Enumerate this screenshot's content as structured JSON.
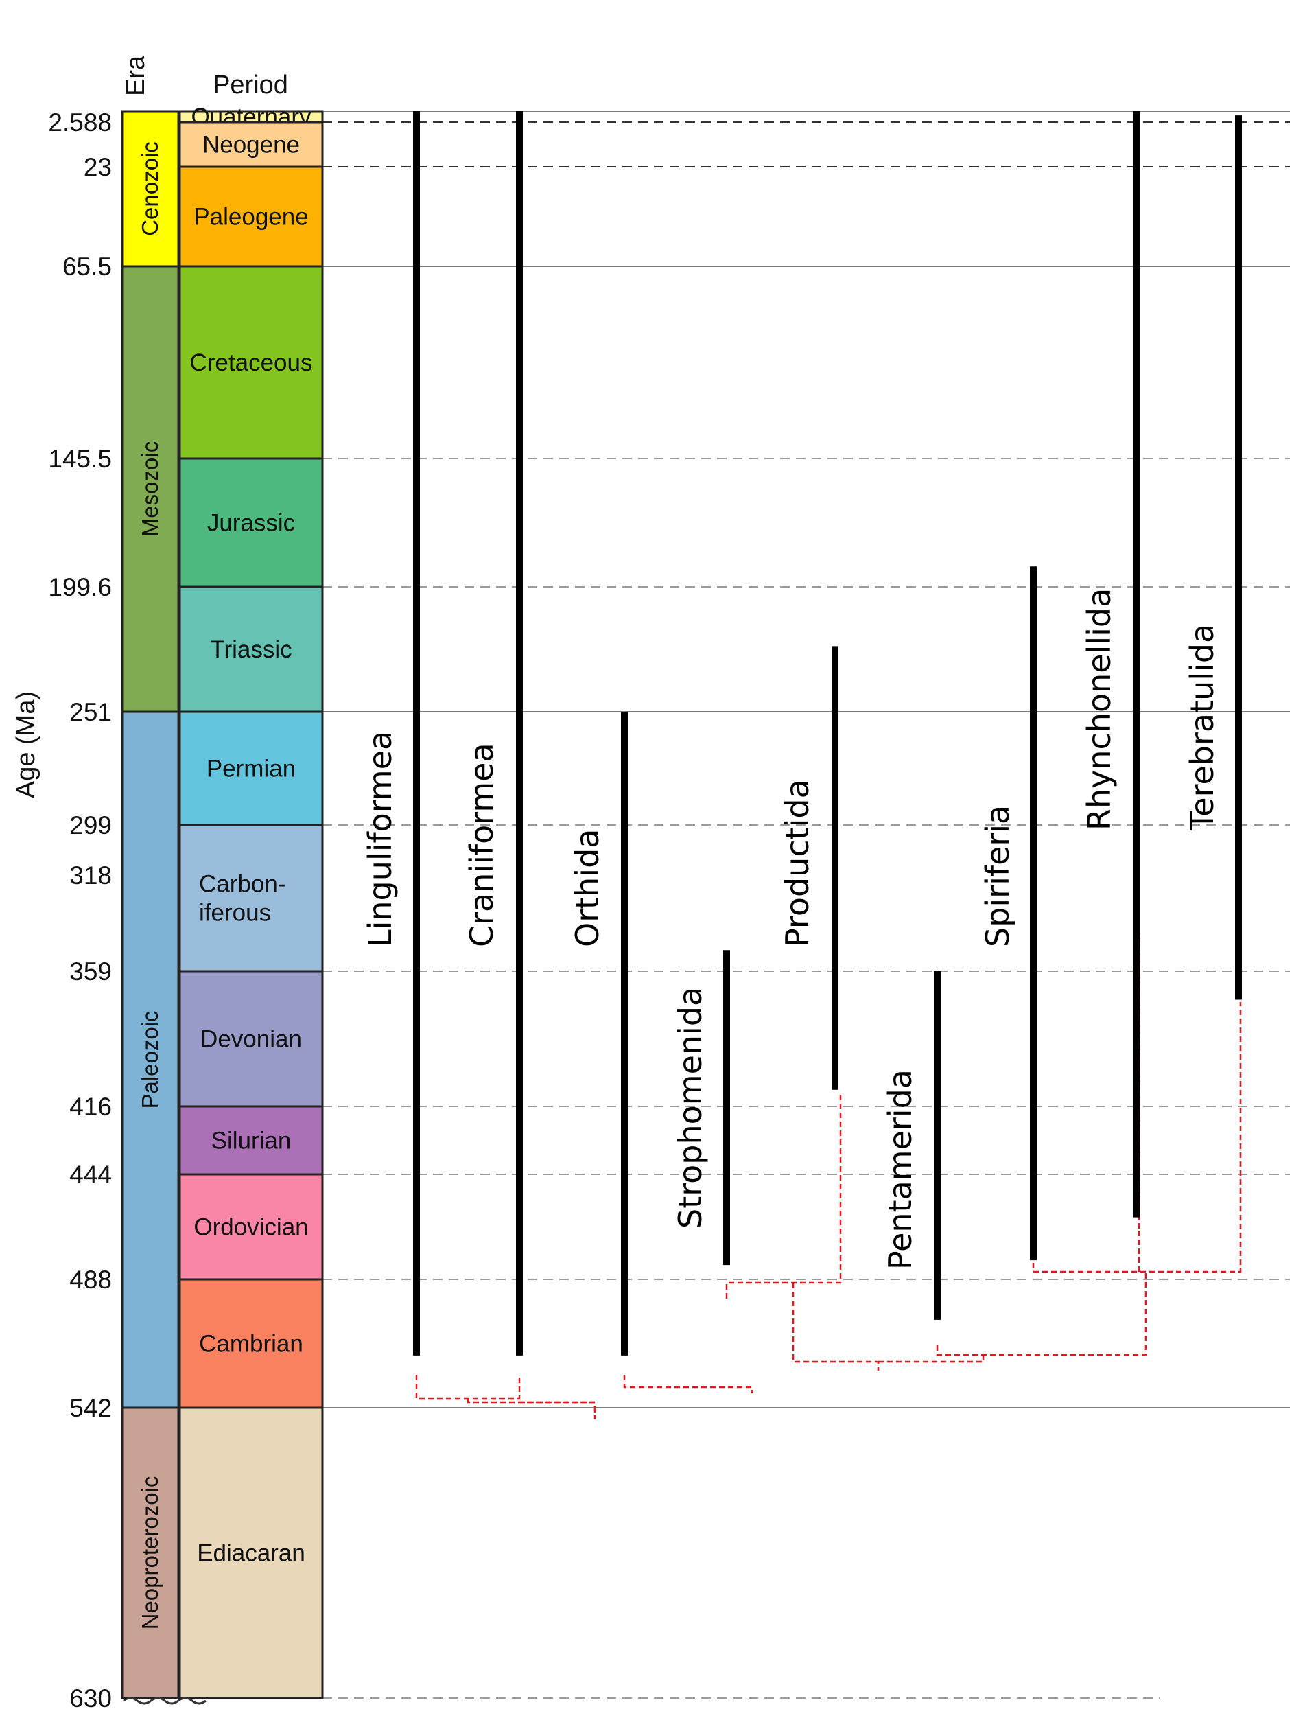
{
  "headers": {
    "era": "Era",
    "period": "Period",
    "age_axis": "Age (Ma)"
  },
  "age_ticks": [
    {
      "value": 2.588,
      "label": "2.588"
    },
    {
      "value": 23,
      "label": "23"
    },
    {
      "value": 65.5,
      "label": "65.5"
    },
    {
      "value": 145.5,
      "label": "145.5"
    },
    {
      "value": 199.6,
      "label": "199.6"
    },
    {
      "value": 251,
      "label": "251"
    },
    {
      "value": 299,
      "label": "299"
    },
    {
      "value": 318,
      "label": "318"
    },
    {
      "value": 359,
      "label": "359"
    },
    {
      "value": 416,
      "label": "416"
    },
    {
      "value": 444,
      "label": "444"
    },
    {
      "value": 488,
      "label": "488"
    },
    {
      "value": 542,
      "label": "542"
    },
    {
      "value": 630,
      "label": "630"
    }
  ],
  "eras": [
    {
      "name": "Cenozoic",
      "start": 0,
      "end": 65.5,
      "color": "#FFFF00"
    },
    {
      "name": "Mesozoic",
      "start": 65.5,
      "end": 251,
      "color": "#80AB52"
    },
    {
      "name": "Paleozoic",
      "start": 251,
      "end": 542,
      "color": "#7EB3D6"
    },
    {
      "name": "Neoproterozoic",
      "start": 542,
      "end": 630,
      "color": "#C8A295"
    }
  ],
  "periods": [
    {
      "name": "Quaternary",
      "start": 0,
      "end": 2.588,
      "color": "#FFF49E",
      "lines": [
        "Quaternary"
      ]
    },
    {
      "name": "Neogene",
      "start": 2.588,
      "end": 23,
      "color": "#FFCF8D",
      "lines": [
        "Neogene"
      ]
    },
    {
      "name": "Paleogene",
      "start": 23,
      "end": 65.5,
      "color": "#FDB100",
      "lines": [
        "Paleogene"
      ]
    },
    {
      "name": "Cretaceous",
      "start": 65.5,
      "end": 145.5,
      "color": "#84C41F",
      "lines": [
        "Cretaceous"
      ]
    },
    {
      "name": "Jurassic",
      "start": 145.5,
      "end": 199.6,
      "color": "#4DB97E",
      "lines": [
        "Jurassic"
      ]
    },
    {
      "name": "Triassic",
      "start": 199.6,
      "end": 251,
      "color": "#66C2B3",
      "lines": [
        "Triassic"
      ]
    },
    {
      "name": "Permian",
      "start": 251,
      "end": 299,
      "color": "#63C4DD",
      "lines": [
        "Permian"
      ]
    },
    {
      "name": "Carboniferous",
      "start": 299,
      "end": 359,
      "color": "#99BDDB",
      "lines": [
        "Carbon-",
        "iferous"
      ]
    },
    {
      "name": "Devonian",
      "start": 359,
      "end": 416,
      "color": "#989BC8",
      "lines": [
        "Devonian"
      ]
    },
    {
      "name": "Silurian",
      "start": 416,
      "end": 444,
      "color": "#AB70B6",
      "lines": [
        "Silurian"
      ]
    },
    {
      "name": "Ordovician",
      "start": 444,
      "end": 488,
      "color": "#F986A7",
      "lines": [
        "Ordovician"
      ]
    },
    {
      "name": "Cambrian",
      "start": 488,
      "end": 542,
      "color": "#FA8261",
      "lines": [
        "Cambrian"
      ]
    },
    {
      "name": "Ediacaran",
      "start": 542,
      "end": 630,
      "color": "#E8D7B9",
      "lines": [
        "Ediacaran"
      ]
    }
  ],
  "boundaries": [
    {
      "age": 0,
      "style": "solid"
    },
    {
      "age": 2.588,
      "style": "dashed-dark"
    },
    {
      "age": 23,
      "style": "dashed-dark"
    },
    {
      "age": 65.5,
      "style": "solid"
    },
    {
      "age": 145.5,
      "style": "dashed"
    },
    {
      "age": 199.6,
      "style": "dashed"
    },
    {
      "age": 251,
      "style": "solid"
    },
    {
      "age": 299,
      "style": "dashed"
    },
    {
      "age": 359,
      "style": "dashed"
    },
    {
      "age": 416,
      "style": "dashed"
    },
    {
      "age": 444,
      "style": "dashed"
    },
    {
      "age": 488,
      "style": "dashed"
    },
    {
      "age": 542,
      "style": "solid"
    },
    {
      "age": 630,
      "style": "dashed"
    }
  ],
  "taxa": [
    {
      "name": "Linguliformea",
      "column": 1,
      "first_appearance": 520,
      "last_appearance": 0
    },
    {
      "name": "Craniiformea",
      "column": 2,
      "first_appearance": 520,
      "last_appearance": 0
    },
    {
      "name": "Orthida",
      "column": 3,
      "first_appearance": 520,
      "last_appearance": 251
    },
    {
      "name": "Strophomenida",
      "column": 4,
      "first_appearance": 482,
      "last_appearance": 350
    },
    {
      "name": "Productida",
      "column": 5,
      "first_appearance": 409,
      "last_appearance": 224
    },
    {
      "name": "Pentamerida",
      "column": 6,
      "first_appearance": 505,
      "last_appearance": 359
    },
    {
      "name": "Spiriferia",
      "column": 7,
      "first_appearance": 480,
      "last_appearance": 191
    },
    {
      "name": "Rhynchonellida",
      "column": 8,
      "first_appearance": 462,
      "last_appearance": 0
    },
    {
      "name": "Terebratulida",
      "column": 9,
      "first_appearance": 371,
      "last_appearance": 1
    }
  ],
  "colors": {
    "range_bar": "#000000",
    "phylogeny": "#E8141C",
    "grid": "#888888"
  }
}
